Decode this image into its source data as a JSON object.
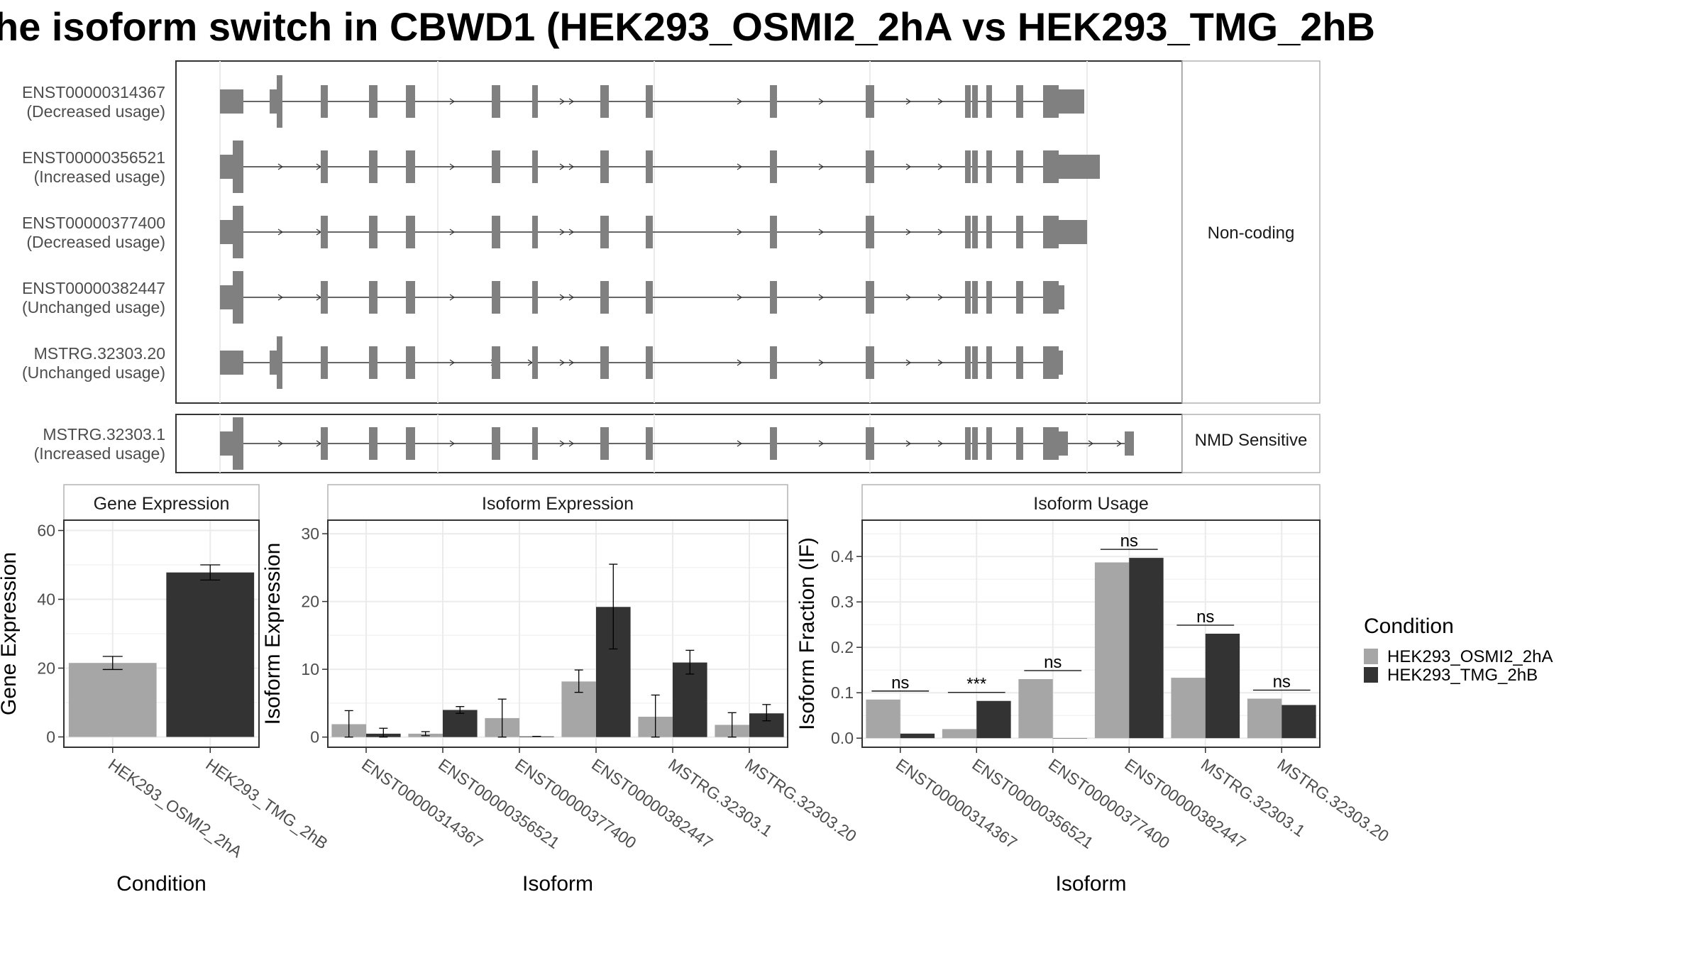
{
  "title": "he isoform switch in CBWD1 (HEK293_OSMI2_2hA vs HEK293_TMG_2hB",
  "colors": {
    "cond_a": "#a6a6a6",
    "cond_b": "#333333",
    "exon": "#808080",
    "grid": "#ebebeb",
    "panel_border": "#333333",
    "strip_border": "#b3b3b3",
    "text": "#4d4d4d"
  },
  "structure": {
    "coding_group": {
      "label": "Non-coding",
      "transcripts": [
        {
          "id": "ENST00000314367",
          "usage": "(Decreased usage)"
        },
        {
          "id": "ENST00000356521",
          "usage": "(Increased usage)"
        },
        {
          "id": "ENST00000377400",
          "usage": "(Decreased usage)"
        },
        {
          "id": "ENST00000382447",
          "usage": "(Unchanged usage)"
        },
        {
          "id": "MSTRG.32303.20",
          "usage": "(Unchanged usage)"
        }
      ]
    },
    "nmd_group": {
      "label": "NMD Sensitive",
      "transcripts": [
        {
          "id": "MSTRG.32303.1",
          "usage": "(Increased usage)"
        }
      ]
    }
  },
  "legend": {
    "title": "Condition",
    "items": [
      "HEK293_OSMI2_2hA",
      "HEK293_TMG_2hB"
    ]
  },
  "chart_data": [
    {
      "type": "bar",
      "title": "Gene Expression",
      "xlabel": "Condition",
      "ylabel": "Gene Expression",
      "categories": [
        "HEK293_OSMI2_2hA",
        "HEK293_TMG_2hB"
      ],
      "values": [
        21.5,
        47.8
      ],
      "errors": [
        [
          19.6,
          23.4
        ],
        [
          45.6,
          50.0
        ]
      ],
      "ylim": [
        -3,
        63
      ],
      "yticks": [
        0,
        20,
        40,
        60
      ]
    },
    {
      "type": "bar",
      "title": "Isoform Expression",
      "xlabel": "Isoform",
      "ylabel": "Isoform Expression",
      "categories": [
        "ENST00000314367",
        "ENST00000356521",
        "ENST00000377400",
        "ENST00000382447",
        "MSTRG.32303.1",
        "MSTRG.32303.20"
      ],
      "series": [
        {
          "name": "HEK293_OSMI2_2hA",
          "values": [
            1.9,
            0.5,
            2.8,
            8.2,
            3.0,
            1.8
          ],
          "errors": [
            [
              0.0,
              3.9
            ],
            [
              0.2,
              0.8
            ],
            [
              0.0,
              5.6
            ],
            [
              6.6,
              9.9
            ],
            [
              0.0,
              6.2
            ],
            [
              0.0,
              3.6
            ]
          ]
        },
        {
          "name": "HEK293_TMG_2hB",
          "values": [
            0.5,
            4.0,
            0.1,
            19.2,
            11.0,
            3.5
          ],
          "errors": [
            [
              0.0,
              1.3
            ],
            [
              3.5,
              4.5
            ],
            [
              0.1,
              0.1
            ],
            [
              13.0,
              25.5
            ],
            [
              9.3,
              12.8
            ],
            [
              2.4,
              4.8
            ]
          ]
        }
      ],
      "ylim": [
        -1.5,
        32
      ],
      "yticks": [
        0,
        10,
        20,
        30
      ]
    },
    {
      "type": "bar",
      "title": "Isoform Usage",
      "xlabel": "Isoform",
      "ylabel": "Isoform Fraction (IF)",
      "categories": [
        "ENST00000314367",
        "ENST00000356521",
        "ENST00000377400",
        "ENST00000382447",
        "MSTRG.32303.1",
        "MSTRG.32303.20"
      ],
      "series": [
        {
          "name": "HEK293_OSMI2_2hA",
          "values": [
            0.085,
            0.02,
            0.13,
            0.387,
            0.133,
            0.087
          ]
        },
        {
          "name": "HEK293_TMG_2hB",
          "values": [
            0.01,
            0.082,
            0.0,
            0.397,
            0.23,
            0.073
          ]
        }
      ],
      "significance": [
        "ns",
        "***",
        "ns",
        "ns",
        "ns",
        "ns"
      ],
      "ylim": [
        -0.02,
        0.48
      ],
      "yticks": [
        0.0,
        0.1,
        0.2,
        0.3,
        0.4
      ]
    }
  ]
}
